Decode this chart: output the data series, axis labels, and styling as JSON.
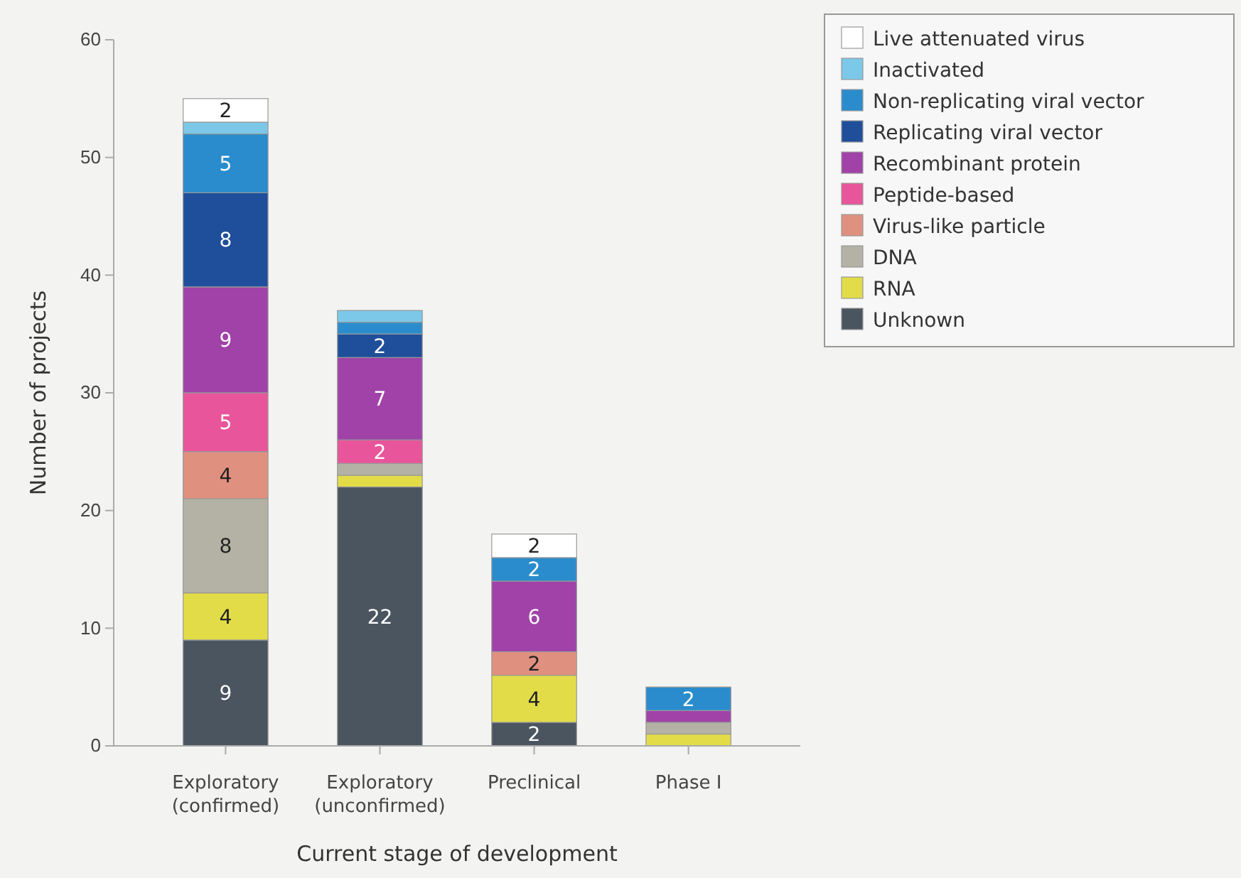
{
  "chart_data": {
    "type": "bar",
    "stacked": true,
    "xlabel": "Current stage of development",
    "ylabel": "Number of projects",
    "categories": [
      "Exploratory\n(confirmed)",
      "Exploratory\n(unconfirmed)",
      "Preclinical",
      "Phase I"
    ],
    "ylim": [
      0,
      60
    ],
    "yticks": [
      0,
      10,
      20,
      30,
      40,
      50,
      60
    ],
    "grid": false,
    "legend": "top right",
    "series": [
      {
        "name": "Unknown",
        "color": "#4a5560",
        "values": [
          9,
          22,
          2,
          0
        ],
        "value_labels": [
          "9",
          "22",
          "2",
          null
        ]
      },
      {
        "name": "RNA",
        "color": "#e2dc48",
        "values": [
          4,
          1,
          4,
          1
        ],
        "value_labels": [
          "4",
          null,
          "4",
          null
        ]
      },
      {
        "name": "DNA",
        "color": "#b3b2a4",
        "values": [
          8,
          1,
          0,
          1
        ],
        "value_labels": [
          "8",
          null,
          null,
          null
        ]
      },
      {
        "name": "Virus-like particle",
        "color": "#e0907f",
        "values": [
          4,
          0,
          2,
          0
        ],
        "value_labels": [
          "4",
          null,
          "2",
          null
        ]
      },
      {
        "name": "Peptide-based",
        "color": "#e8559a",
        "values": [
          5,
          2,
          0,
          0
        ],
        "value_labels": [
          "5",
          "2",
          null,
          null
        ]
      },
      {
        "name": "Recombinant protein",
        "color": "#a042a8",
        "values": [
          9,
          7,
          6,
          1
        ],
        "value_labels": [
          "9",
          "7",
          "6",
          null
        ]
      },
      {
        "name": "Replicating viral vector",
        "color": "#1f4f9a",
        "values": [
          8,
          2,
          0,
          0
        ],
        "value_labels": [
          "8",
          "2",
          null,
          null
        ]
      },
      {
        "name": "Non-replicating viral vector",
        "color": "#2a8ccc",
        "values": [
          5,
          1,
          2,
          2
        ],
        "value_labels": [
          "5",
          null,
          "2",
          "2"
        ]
      },
      {
        "name": "Inactivated",
        "color": "#7cc8e8",
        "values": [
          1,
          1,
          0,
          0
        ],
        "value_labels": [
          null,
          null,
          null,
          null
        ]
      },
      {
        "name": "Live attenuated virus",
        "color": "#ffffff",
        "values": [
          2,
          0,
          2,
          0
        ],
        "value_labels": [
          "2",
          null,
          "2",
          null
        ]
      }
    ]
  }
}
